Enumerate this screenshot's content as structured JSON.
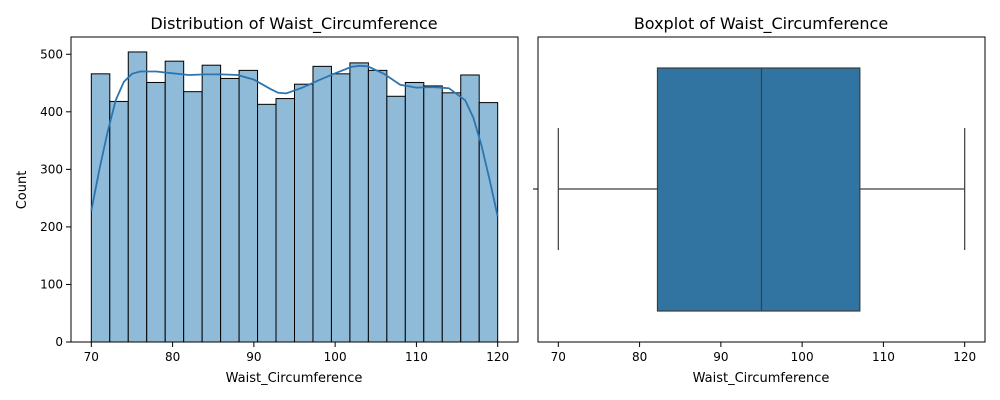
{
  "chart_data": [
    {
      "type": "bar",
      "title": "Distribution of Waist_Circumference",
      "xlabel": "Waist_Circumference",
      "ylabel": "Count",
      "xlim": [
        67.5,
        122.5
      ],
      "ylim": [
        0,
        530
      ],
      "xticks": [
        70,
        80,
        90,
        100,
        110,
        120
      ],
      "yticks": [
        0,
        100,
        200,
        300,
        400,
        500
      ],
      "bin_edges": [
        70,
        72.273,
        74.545,
        76.818,
        79.091,
        81.364,
        83.636,
        85.909,
        88.182,
        90.455,
        92.727,
        95.0,
        97.273,
        99.545,
        101.818,
        104.091,
        106.364,
        108.636,
        110.909,
        113.182,
        115.455,
        117.727,
        120
      ],
      "values": [
        466,
        418,
        504,
        451,
        488,
        435,
        481,
        458,
        472,
        413,
        423,
        448,
        479,
        466,
        485,
        472,
        427,
        451,
        445,
        433,
        464,
        416
      ],
      "kde": {
        "x": [
          70,
          71,
          72,
          73,
          74,
          75,
          76,
          78,
          80,
          82,
          84,
          86,
          88,
          90,
          92,
          93,
          94,
          96,
          98,
          100,
          102,
          103,
          104,
          106,
          108,
          110,
          112,
          114,
          116,
          117,
          118,
          119,
          120
        ],
        "y": [
          228,
          300,
          365,
          420,
          452,
          466,
          470,
          470,
          467,
          464,
          465,
          465,
          464,
          456,
          440,
          433,
          432,
          442,
          455,
          467,
          478,
          480,
          479,
          466,
          447,
          442,
          443,
          441,
          420,
          390,
          342,
          282,
          218
        ]
      },
      "colors": {
        "bar_fill": "#8fbbd9",
        "bar_edge": "#000000",
        "kde_line": "#2b75b0"
      }
    },
    {
      "type": "box",
      "title": "Boxplot of Waist_Circumference",
      "xlabel": "Waist_Circumference",
      "xlim": [
        67.5,
        122.5
      ],
      "xticks": [
        70,
        80,
        90,
        100,
        110,
        120
      ],
      "whisker_low": 70,
      "q1": 82.2,
      "median": 95.0,
      "q3": 107.1,
      "whisker_high": 120,
      "colors": {
        "box_fill": "#3274a1",
        "line": "#3d3d3d"
      }
    }
  ]
}
